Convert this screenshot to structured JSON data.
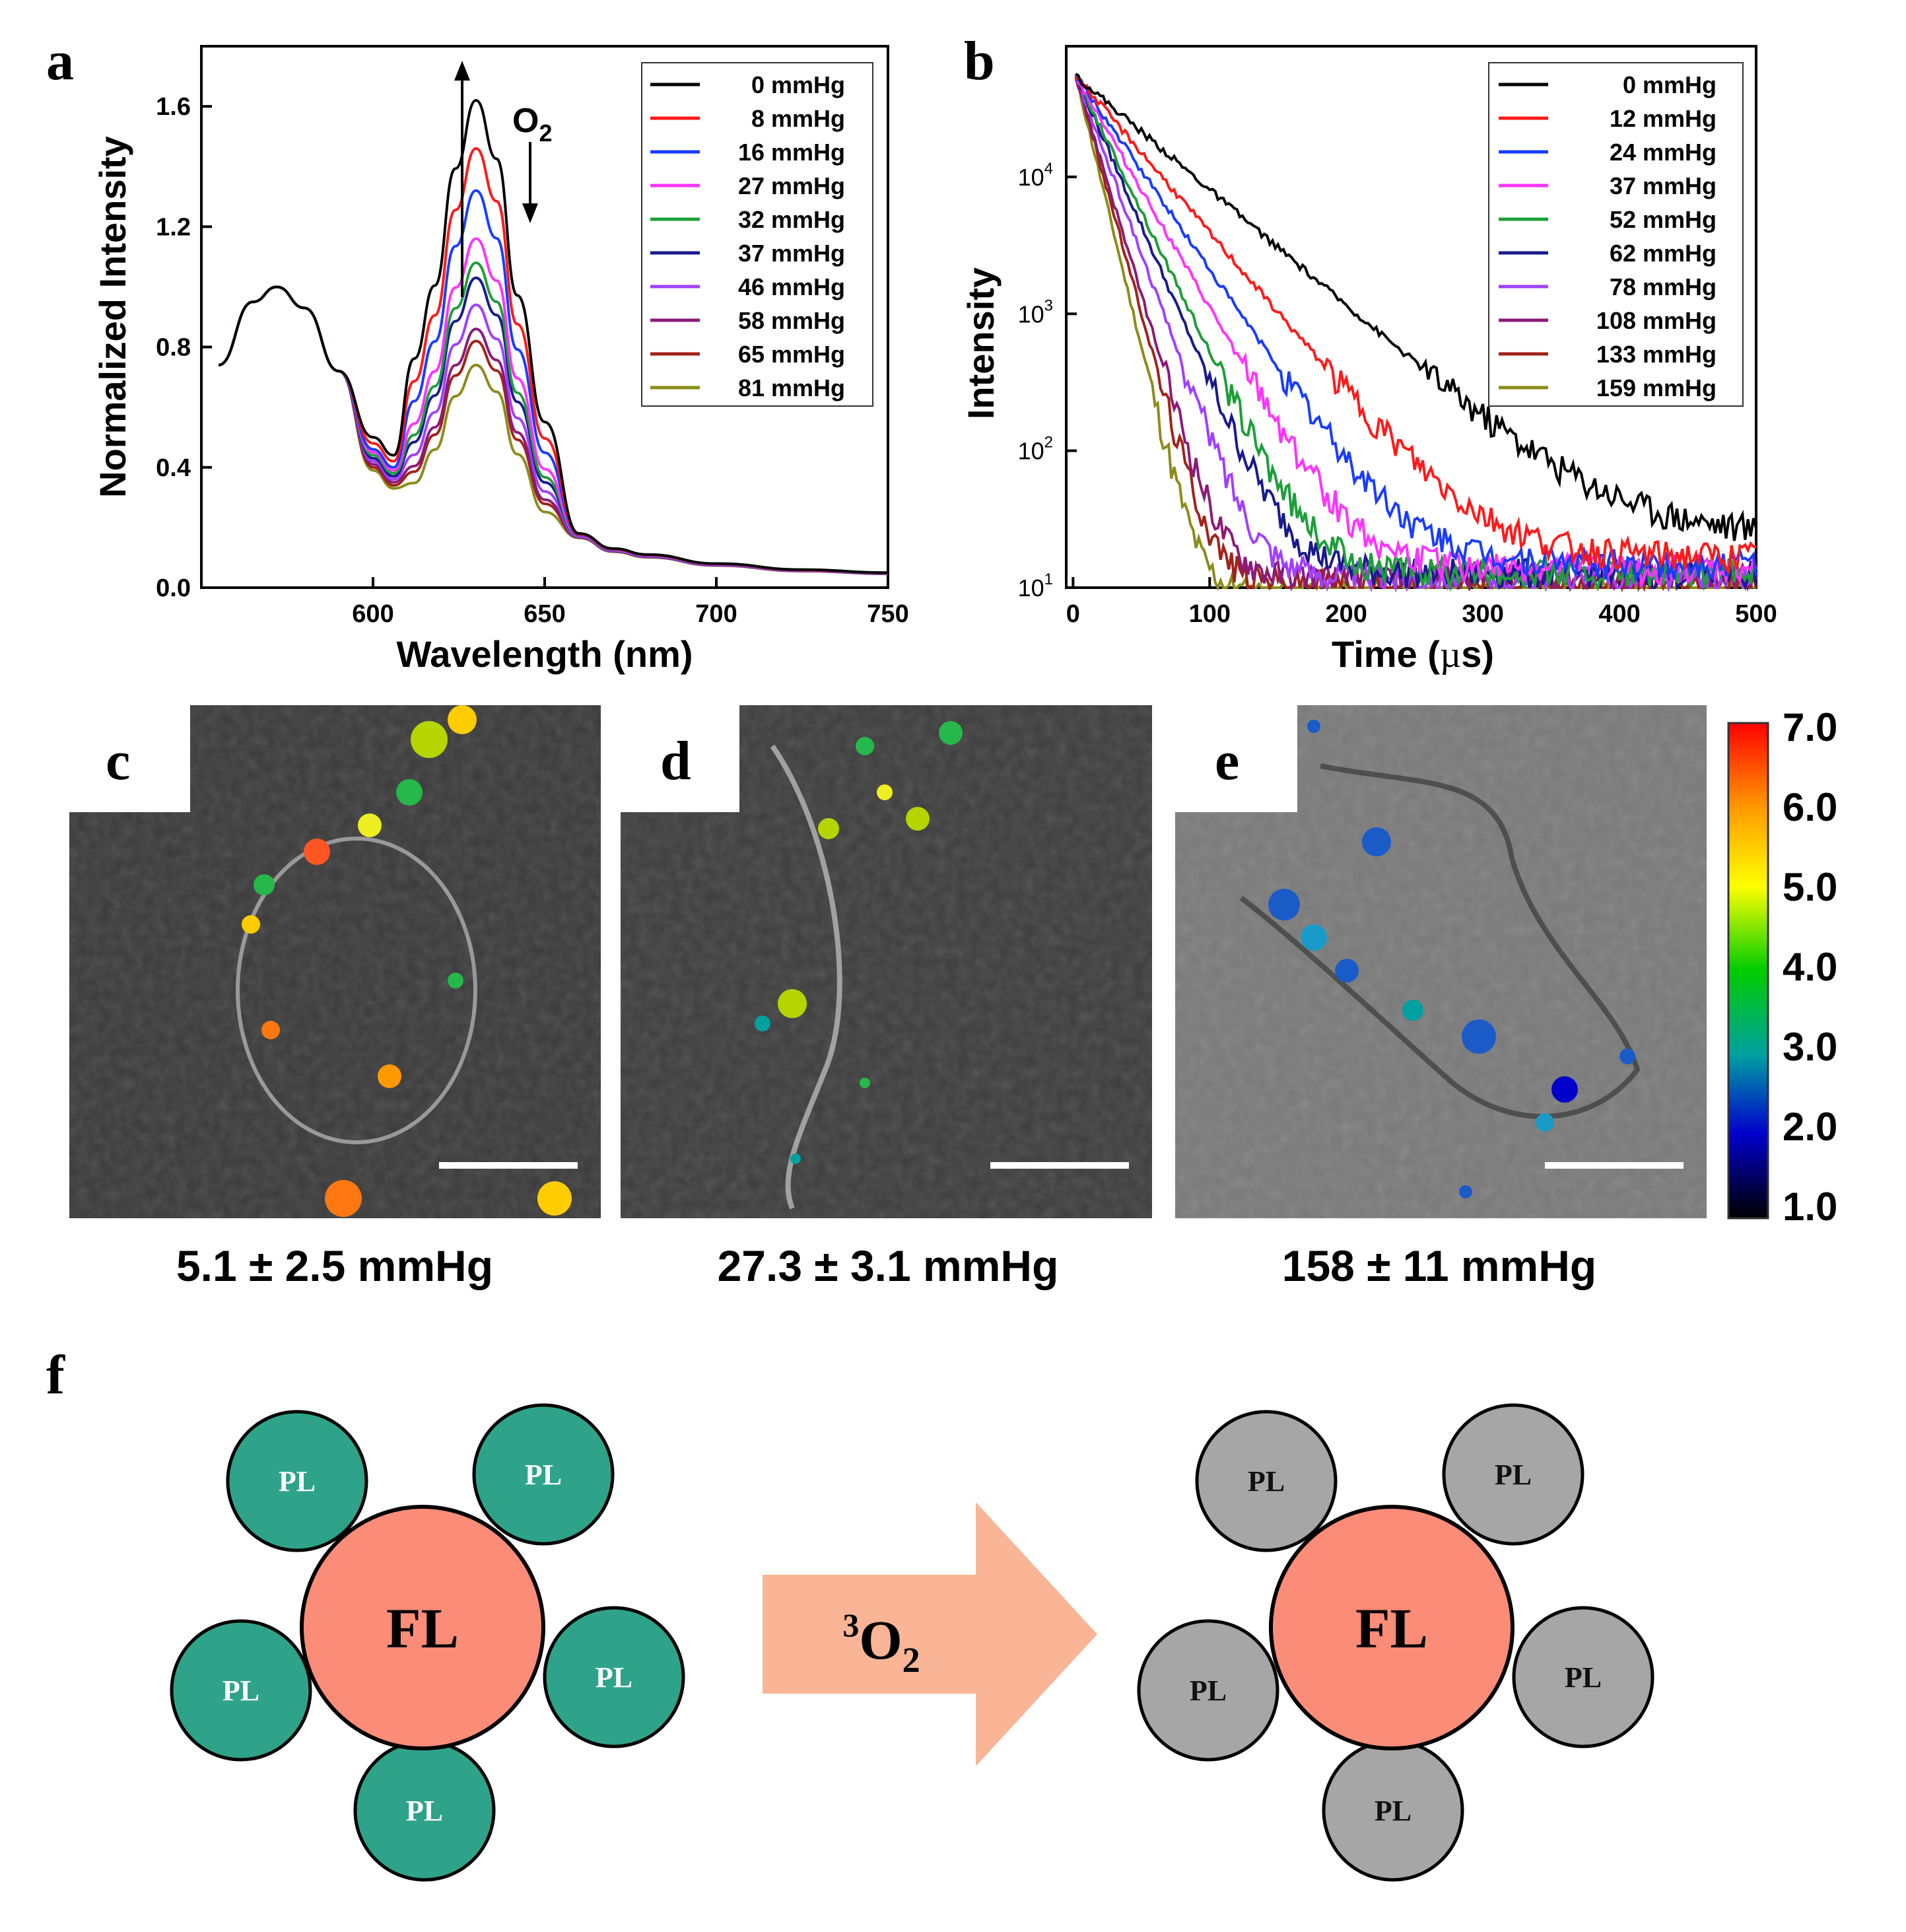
{
  "panel_labels": {
    "a": "a",
    "b": "b",
    "c": "c",
    "d": "d",
    "e": "e",
    "f": "f"
  },
  "chart_data": [
    {
      "id": "a",
      "type": "line",
      "xlabel": "Wavelength (nm)",
      "ylabel": "Normalized Intensity",
      "xlim": [
        550,
        750
      ],
      "ylim": [
        0.0,
        1.8
      ],
      "xticks": [
        "600",
        "650",
        "700",
        "750"
      ],
      "xtick_values": [
        600,
        650,
        700,
        750
      ],
      "yticks": [
        "0.0",
        "0.4",
        "0.8",
        "1.2",
        "1.6"
      ],
      "ytick_values": [
        0.0,
        0.4,
        0.8,
        1.2,
        1.6
      ],
      "annotation": {
        "label": "O",
        "subscript": "2"
      },
      "shared_shape": {
        "x": [
          555,
          565,
          572,
          580,
          590,
          600,
          606,
          612,
          618,
          624,
          630,
          636,
          642,
          650,
          660,
          670,
          680,
          700,
          725,
          750
        ],
        "y_base": [
          0.74,
          0.95,
          1.0,
          0.93,
          0.72,
          0.5,
          0.44,
          0.47,
          0.62,
          0.86,
          1.0,
          0.88,
          0.6,
          0.34,
          0.18,
          0.13,
          0.11,
          0.08,
          0.06,
          0.05
        ]
      },
      "series": [
        {
          "name": "0 mmHg",
          "color": "#000000",
          "peak": 1.62,
          "valley": 0.48
        },
        {
          "name": "8 mmHg",
          "color": "#ff1a1a",
          "peak": 1.46,
          "valley": 0.46
        },
        {
          "name": "16 mmHg",
          "color": "#1a3cff",
          "peak": 1.32,
          "valley": 0.44
        },
        {
          "name": "27 mmHg",
          "color": "#ff33ff",
          "peak": 1.16,
          "valley": 0.43
        },
        {
          "name": "32 mmHg",
          "color": "#1e9e3a",
          "peak": 1.08,
          "valley": 0.42
        },
        {
          "name": "37 mmHg",
          "color": "#1a1a8c",
          "peak": 1.03,
          "valley": 0.41
        },
        {
          "name": "46 mmHg",
          "color": "#a040ff",
          "peak": 0.94,
          "valley": 0.4
        },
        {
          "name": "58 mmHg",
          "color": "#8c1a7a",
          "peak": 0.86,
          "valley": 0.39
        },
        {
          "name": "65 mmHg",
          "color": "#a0231a",
          "peak": 0.82,
          "valley": 0.38
        },
        {
          "name": "81 mmHg",
          "color": "#8c8c1a",
          "peak": 0.74,
          "valley": 0.37
        }
      ]
    },
    {
      "id": "b",
      "type": "line",
      "scale": "log",
      "xlabel_pre": "Time (",
      "xlabel_mu": "µ",
      "xlabel_post": "s)",
      "ylabel": "Intensity",
      "xlim": [
        -5,
        500
      ],
      "ylim": [
        10,
        90000
      ],
      "xticks": [
        "0",
        "100",
        "200",
        "300",
        "400",
        "500"
      ],
      "xtick_values": [
        0,
        100,
        200,
        300,
        400,
        500
      ],
      "yticks": [
        {
          "base": "10",
          "exp": "1",
          "value": 10
        },
        {
          "base": "10",
          "exp": "2",
          "value": 100
        },
        {
          "base": "10",
          "exp": "3",
          "value": 1000
        },
        {
          "base": "10",
          "exp": "4",
          "value": 10000
        }
      ],
      "decay_start": 55000,
      "series": [
        {
          "name": "0 mmHg",
          "color": "#000000",
          "tau": 51,
          "floor": 24
        },
        {
          "name": "12 mmHg",
          "color": "#ff1a1a",
          "tau": 37,
          "floor": 17
        },
        {
          "name": "24 mmHg",
          "color": "#1a3cff",
          "tau": 30,
          "floor": 15
        },
        {
          "name": "37 mmHg",
          "color": "#ff33ff",
          "tau": 25,
          "floor": 14
        },
        {
          "name": "52 mmHg",
          "color": "#1e9e3a",
          "tau": 21,
          "floor": 13
        },
        {
          "name": "62 mmHg",
          "color": "#1a1a8c",
          "tau": 19,
          "floor": 13
        },
        {
          "name": "78 mmHg",
          "color": "#a040ff",
          "tau": 16,
          "floor": 12
        },
        {
          "name": "108 mmHg",
          "color": "#8c1a7a",
          "tau": 13,
          "floor": 12
        },
        {
          "name": "133 mmHg",
          "color": "#a0231a",
          "tau": 12,
          "floor": 11
        },
        {
          "name": "159 mmHg",
          "color": "#8c8c1a",
          "tau": 10.5,
          "floor": 9
        }
      ]
    }
  ],
  "micrographs": [
    {
      "id": "c",
      "caption": "5.1 ± 2.5 mmHg",
      "tone": "#3a3a3a"
    },
    {
      "id": "d",
      "caption": "27.3 ± 3.1 mmHg",
      "tone": "#3d3d3d"
    },
    {
      "id": "e",
      "caption": "158 ± 11 mmHg",
      "tone": "#7a7a7a"
    }
  ],
  "colorbar": {
    "ticks": [
      "7.0",
      "6.0",
      "5.0",
      "4.0",
      "3.0",
      "2.0",
      "1.0"
    ],
    "colors": [
      "#ff0000",
      "#ff9900",
      "#ffff00",
      "#00cc00",
      "#00a0a0",
      "#0000cc",
      "#000000"
    ]
  },
  "scheme": {
    "left": {
      "center_label": "FL",
      "satellite_label": "PL",
      "center_color": "#fa8c78",
      "satellite_color": "#2ea38a",
      "satellite_text": "#ffffff"
    },
    "arrow": {
      "label": "O",
      "sup": "3",
      "sub": "2",
      "color": "#f9b596"
    },
    "right": {
      "center_label": "FL",
      "satellite_label": "PL",
      "center_color": "#fa8c78",
      "satellite_color": "#a6a6a6",
      "satellite_text": "#111111"
    }
  }
}
